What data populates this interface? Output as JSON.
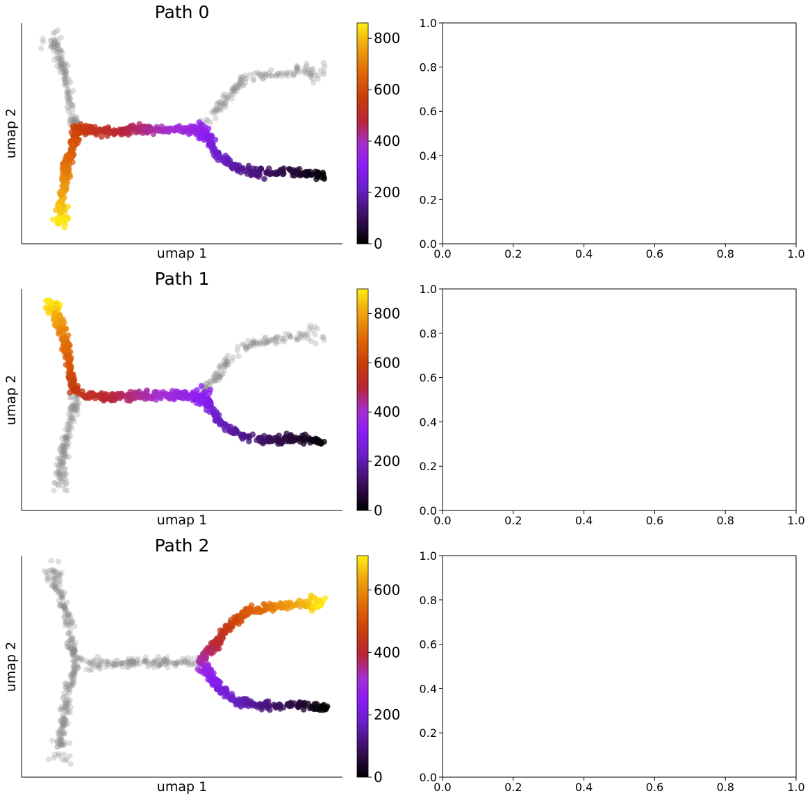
{
  "chart_data": [
    {
      "type": "scatter",
      "title": "Path 0",
      "xlabel": "umap 1",
      "ylabel": "umap 2",
      "colorbar": {
        "min": 0,
        "max": 860,
        "ticks": [
          0,
          200,
          400,
          600,
          800
        ],
        "tick_labels": [
          "0",
          "200",
          "400",
          "600",
          "800"
        ],
        "colormap": "gnuplot"
      },
      "background_points": "gray",
      "path_segments": [
        {
          "branch": "right-lower",
          "value_start": 0,
          "value_end": 330
        },
        {
          "branch": "center-horizontal",
          "value_start": 330,
          "value_end": 560
        },
        {
          "branch": "left-lower",
          "value_start": 560,
          "value_end": 860
        }
      ]
    },
    {
      "type": "empty",
      "xlim": [
        0.0,
        1.0
      ],
      "ylim": [
        0.0,
        1.0
      ],
      "xticks": [
        "0.0",
        "0.2",
        "0.4",
        "0.6",
        "0.8",
        "1.0"
      ],
      "yticks": [
        "0.0",
        "0.2",
        "0.4",
        "0.6",
        "0.8",
        "1.0"
      ]
    },
    {
      "type": "scatter",
      "title": "Path 1",
      "xlabel": "umap 1",
      "ylabel": "umap 2",
      "colorbar": {
        "min": 0,
        "max": 900,
        "ticks": [
          0,
          200,
          400,
          600,
          800
        ],
        "tick_labels": [
          "0",
          "200",
          "400",
          "600",
          "800"
        ],
        "colormap": "gnuplot"
      },
      "background_points": "gray",
      "path_segments": [
        {
          "branch": "right-lower",
          "value_start": 0,
          "value_end": 330
        },
        {
          "branch": "center-horizontal",
          "value_start": 330,
          "value_end": 560
        },
        {
          "branch": "left-upper",
          "value_start": 560,
          "value_end": 900
        }
      ]
    },
    {
      "type": "empty",
      "xlim": [
        0.0,
        1.0
      ],
      "ylim": [
        0.0,
        1.0
      ],
      "xticks": [
        "0.0",
        "0.2",
        "0.4",
        "0.6",
        "0.8",
        "1.0"
      ],
      "yticks": [
        "0.0",
        "0.2",
        "0.4",
        "0.6",
        "0.8",
        "1.0"
      ]
    },
    {
      "type": "scatter",
      "title": "Path 2",
      "xlabel": "umap 1",
      "ylabel": "umap 2",
      "colorbar": {
        "min": 0,
        "max": 710,
        "ticks": [
          0,
          200,
          400,
          600
        ],
        "tick_labels": [
          "0",
          "200",
          "400",
          "600"
        ],
        "colormap": "gnuplot"
      },
      "background_points": "gray",
      "path_segments": [
        {
          "branch": "right-lower",
          "value_start": 0,
          "value_end": 330
        },
        {
          "branch": "right-upper",
          "value_start": 330,
          "value_end": 710
        }
      ]
    },
    {
      "type": "empty",
      "xlim": [
        0.0,
        1.0
      ],
      "ylim": [
        0.0,
        1.0
      ],
      "xticks": [
        "0.0",
        "0.2",
        "0.4",
        "0.6",
        "0.8",
        "1.0"
      ],
      "yticks": [
        "0.0",
        "0.2",
        "0.4",
        "0.6",
        "0.8",
        "1.0"
      ]
    }
  ]
}
